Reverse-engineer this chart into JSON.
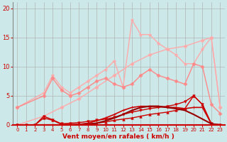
{
  "background_color": "#cce8e8",
  "grid_color": "#aaaaaa",
  "xlabel": "Vent moyen/en rafales ( km/h )",
  "xlim": [
    -0.5,
    23.5
  ],
  "ylim": [
    0,
    21
  ],
  "xticks": [
    0,
    1,
    2,
    3,
    4,
    5,
    6,
    7,
    8,
    9,
    10,
    11,
    12,
    13,
    14,
    15,
    16,
    17,
    18,
    19,
    20,
    21,
    22,
    23
  ],
  "yticks": [
    0,
    5,
    10,
    15,
    20
  ],
  "series": [
    {
      "x": [
        0,
        3,
        5,
        7,
        9,
        11,
        13,
        15,
        17,
        19,
        21,
        22,
        23
      ],
      "y": [
        0,
        1.5,
        3.0,
        4.5,
        6.5,
        8.5,
        10.5,
        12.0,
        13.0,
        13.5,
        14.5,
        15.0,
        3.0
      ],
      "color": "#ffaaaa",
      "marker": "D",
      "ms": 2.5,
      "lw": 1.0
    },
    {
      "x": [
        0,
        3,
        4,
        5,
        6,
        7,
        8,
        9,
        10,
        11,
        12,
        13,
        14,
        15,
        16,
        17,
        18,
        19,
        20,
        21,
        22,
        23
      ],
      "y": [
        3.0,
        5.5,
        8.5,
        6.5,
        5.5,
        6.5,
        7.5,
        8.5,
        9.5,
        11.0,
        6.5,
        18.0,
        15.5,
        15.5,
        14.0,
        13.0,
        12.0,
        10.5,
        10.5,
        13.0,
        15.0,
        3.0
      ],
      "color": "#ffaaaa",
      "marker": "*",
      "ms": 3.5,
      "lw": 1.0
    },
    {
      "x": [
        0,
        3,
        4,
        5,
        6,
        7,
        8,
        9,
        10,
        11,
        12,
        13,
        14,
        15,
        16,
        17,
        18,
        19,
        20,
        21,
        22,
        23
      ],
      "y": [
        3.0,
        5.0,
        8.0,
        6.0,
        5.0,
        5.5,
        6.5,
        7.5,
        8.0,
        7.0,
        6.5,
        7.0,
        8.5,
        9.5,
        8.5,
        8.0,
        7.5,
        7.0,
        10.5,
        10.0,
        3.5,
        2.0
      ],
      "color": "#ff8888",
      "marker": "D",
      "ms": 2.5,
      "lw": 1.0
    },
    {
      "x": [
        0,
        1,
        2,
        3,
        4,
        5,
        6,
        7,
        8,
        9,
        10,
        11,
        12,
        13,
        14,
        15,
        16,
        17,
        18,
        19,
        20,
        21,
        22,
        23
      ],
      "y": [
        0,
        0,
        0,
        1.2,
        0.8,
        0.1,
        0.1,
        0.1,
        0.2,
        0.3,
        0.5,
        0.8,
        1.0,
        1.2,
        1.5,
        1.8,
        2.0,
        2.2,
        2.5,
        2.8,
        5.0,
        3.5,
        0.2,
        0
      ],
      "color": "#cc0000",
      "marker": "^",
      "ms": 2.5,
      "lw": 1.0
    },
    {
      "x": [
        0,
        1,
        2,
        3,
        4,
        5,
        6,
        7,
        8,
        9,
        10,
        11,
        12,
        13,
        14,
        15,
        16,
        17,
        18,
        19,
        20,
        21,
        22,
        23
      ],
      "y": [
        0,
        0,
        0,
        1.5,
        0.9,
        0.2,
        0.3,
        0.4,
        0.6,
        0.8,
        1.0,
        1.3,
        1.8,
        2.2,
        2.5,
        2.8,
        3.0,
        3.2,
        3.5,
        4.0,
        5.0,
        3.5,
        0.2,
        0
      ],
      "color": "#cc0000",
      "marker": "v",
      "ms": 2.5,
      "lw": 1.0
    },
    {
      "x": [
        0,
        1,
        2,
        3,
        4,
        5,
        6,
        7,
        8,
        9,
        10,
        11,
        12,
        13,
        14,
        15,
        16,
        17,
        18,
        19,
        20,
        21,
        22,
        23
      ],
      "y": [
        0,
        0,
        0,
        0,
        0,
        0,
        0,
        0.1,
        0.3,
        0.7,
        1.2,
        1.8,
        2.5,
        3.0,
        3.2,
        3.2,
        3.2,
        3.0,
        3.0,
        2.8,
        3.0,
        3.0,
        0.2,
        0
      ],
      "color": "#cc0000",
      "marker": "+",
      "ms": 3.0,
      "lw": 1.2
    },
    {
      "x": [
        0,
        1,
        2,
        3,
        4,
        5,
        6,
        7,
        8,
        9,
        10,
        11,
        12,
        13,
        14,
        15,
        16,
        17,
        18,
        19,
        20,
        21,
        22,
        23
      ],
      "y": [
        0,
        0,
        0,
        0,
        0,
        0,
        0,
        0,
        0.1,
        0.3,
        0.7,
        1.2,
        1.8,
        2.5,
        3.0,
        3.2,
        3.2,
        3.0,
        2.8,
        2.5,
        1.8,
        1.0,
        0.2,
        0
      ],
      "color": "#990000",
      "marker": null,
      "ms": 0,
      "lw": 1.5
    },
    {
      "x": [
        0,
        1,
        2,
        3,
        4,
        5,
        6,
        7,
        8,
        9,
        10,
        11,
        12,
        13,
        14,
        15,
        16,
        17,
        18,
        19,
        20,
        21,
        22,
        23
      ],
      "y": [
        0,
        0,
        0,
        0.05,
        0.05,
        0,
        0,
        0,
        0,
        0,
        0,
        0,
        0,
        0,
        0,
        0,
        0,
        0,
        0,
        0,
        0,
        0,
        0,
        0
      ],
      "color": "#880000",
      "marker": null,
      "ms": 0,
      "lw": 0.8
    }
  ]
}
